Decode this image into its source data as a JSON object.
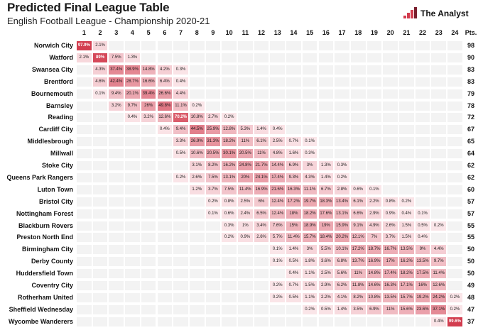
{
  "header": {
    "title": "Predicted Final League Table",
    "subtitle": "English Football League - Championship 2020-21",
    "brand": "The Analyst"
  },
  "colors": {
    "accent": "#d23c4e",
    "low": "#fbe9ec",
    "blank": "#f3f3f3"
  },
  "chart_data": {
    "type": "heatmap",
    "title": "Predicted Final League Table",
    "subtitle": "English Football League - Championship 2020-21",
    "x_categories": [
      "1",
      "2",
      "3",
      "4",
      "5",
      "6",
      "7",
      "8",
      "9",
      "10",
      "11",
      "12",
      "13",
      "14",
      "15",
      "16",
      "17",
      "18",
      "19",
      "20",
      "21",
      "22",
      "23",
      "24"
    ],
    "points_header": "Pts.",
    "rows": [
      {
        "team": "Norwich City",
        "pts": "98",
        "probs": [
          [
            "1",
            "97.9%"
          ],
          [
            "2",
            "2.1%"
          ]
        ]
      },
      {
        "team": "Watford",
        "pts": "90",
        "probs": [
          [
            "1",
            "2.1%"
          ],
          [
            "2",
            "89%"
          ],
          [
            "3",
            "7.5%"
          ],
          [
            "4",
            "1.3%"
          ]
        ]
      },
      {
        "team": "Swansea City",
        "pts": "83",
        "probs": [
          [
            "2",
            "4.3%"
          ],
          [
            "3",
            "37.4%"
          ],
          [
            "4",
            "38.9%"
          ],
          [
            "5",
            "14.8%"
          ],
          [
            "6",
            "4.2%"
          ],
          [
            "7",
            "0.3%"
          ]
        ]
      },
      {
        "team": "Brentford",
        "pts": "83",
        "probs": [
          [
            "2",
            "4.6%"
          ],
          [
            "3",
            "42.4%"
          ],
          [
            "4",
            "28.7%"
          ],
          [
            "5",
            "16.6%"
          ],
          [
            "6",
            "6.4%"
          ],
          [
            "7",
            "0.4%"
          ]
        ]
      },
      {
        "team": "Bournemouth",
        "pts": "79",
        "probs": [
          [
            "2",
            "0.1%"
          ],
          [
            "3",
            "9.4%"
          ],
          [
            "4",
            "20.1%"
          ],
          [
            "5",
            "39.4%"
          ],
          [
            "6",
            "26.6%"
          ],
          [
            "7",
            "4.4%"
          ]
        ]
      },
      {
        "team": "Barnsley",
        "pts": "78",
        "probs": [
          [
            "3",
            "3.2%"
          ],
          [
            "4",
            "9.7%"
          ],
          [
            "5",
            "26%"
          ],
          [
            "6",
            "49.8%"
          ],
          [
            "7",
            "11.1%"
          ],
          [
            "8",
            "0.2%"
          ]
        ]
      },
      {
        "team": "Reading",
        "pts": "72",
        "probs": [
          [
            "4",
            "0.4%"
          ],
          [
            "5",
            "3.2%"
          ],
          [
            "6",
            "12.6%"
          ],
          [
            "7",
            "70.2%"
          ],
          [
            "8",
            "10.8%"
          ],
          [
            "9",
            "2.7%"
          ],
          [
            "10",
            "0.2%"
          ]
        ]
      },
      {
        "team": "Cardiff City",
        "pts": "67",
        "probs": [
          [
            "6",
            "0.4%"
          ],
          [
            "7",
            "9.4%"
          ],
          [
            "8",
            "44.5%"
          ],
          [
            "9",
            "25.9%"
          ],
          [
            "10",
            "12.8%"
          ],
          [
            "11",
            "5.3%"
          ],
          [
            "12",
            "1.4%"
          ],
          [
            "13",
            "0.4%"
          ]
        ]
      },
      {
        "team": "Middlesbrough",
        "pts": "65",
        "probs": [
          [
            "7",
            "3.3%"
          ],
          [
            "8",
            "26.9%"
          ],
          [
            "9",
            "31.3%"
          ],
          [
            "10",
            "18.2%"
          ],
          [
            "11",
            "11%"
          ],
          [
            "12",
            "6.1%"
          ],
          [
            "13",
            "2.5%"
          ],
          [
            "14",
            "0.7%"
          ],
          [
            "15",
            "0.1%"
          ]
        ]
      },
      {
        "team": "Millwall",
        "pts": "64",
        "probs": [
          [
            "7",
            "0.5%"
          ],
          [
            "8",
            "10.6%"
          ],
          [
            "9",
            "20.5%"
          ],
          [
            "10",
            "30.1%"
          ],
          [
            "11",
            "20.5%"
          ],
          [
            "12",
            "11%"
          ],
          [
            "13",
            "4.8%"
          ],
          [
            "14",
            "1.6%"
          ],
          [
            "15",
            "0.3%"
          ]
        ]
      },
      {
        "team": "Stoke City",
        "pts": "62",
        "probs": [
          [
            "8",
            "3.1%"
          ],
          [
            "9",
            "8.2%"
          ],
          [
            "10",
            "16.2%"
          ],
          [
            "11",
            "24.8%"
          ],
          [
            "12",
            "21.7%"
          ],
          [
            "13",
            "14.4%"
          ],
          [
            "14",
            "6.9%"
          ],
          [
            "15",
            "3%"
          ],
          [
            "16",
            "1.3%"
          ],
          [
            "17",
            "0.3%"
          ]
        ]
      },
      {
        "team": "Queens Park Rangers",
        "pts": "62",
        "probs": [
          [
            "7",
            "0.2%"
          ],
          [
            "8",
            "2.6%"
          ],
          [
            "9",
            "7.5%"
          ],
          [
            "10",
            "13.1%"
          ],
          [
            "11",
            "20%"
          ],
          [
            "12",
            "24.1%"
          ],
          [
            "13",
            "17.4%"
          ],
          [
            "14",
            "9.3%"
          ],
          [
            "15",
            "4.3%"
          ],
          [
            "16",
            "1.4%"
          ],
          [
            "17",
            "0.2%"
          ]
        ]
      },
      {
        "team": "Luton Town",
        "pts": "60",
        "probs": [
          [
            "8",
            "1.2%"
          ],
          [
            "9",
            "3.7%"
          ],
          [
            "10",
            "7.5%"
          ],
          [
            "11",
            "11.4%"
          ],
          [
            "12",
            "16.9%"
          ],
          [
            "13",
            "21.6%"
          ],
          [
            "14",
            "16.3%"
          ],
          [
            "15",
            "11.1%"
          ],
          [
            "16",
            "6.7%"
          ],
          [
            "17",
            "2.8%"
          ],
          [
            "18",
            "0.6%"
          ],
          [
            "19",
            "0.1%"
          ]
        ]
      },
      {
        "team": "Bristol City",
        "pts": "57",
        "probs": [
          [
            "9",
            "0.2%"
          ],
          [
            "10",
            "0.8%"
          ],
          [
            "11",
            "2.5%"
          ],
          [
            "12",
            "6%"
          ],
          [
            "13",
            "12.4%"
          ],
          [
            "14",
            "17.2%"
          ],
          [
            "15",
            "19.7%"
          ],
          [
            "16",
            "18.3%"
          ],
          [
            "17",
            "13.4%"
          ],
          [
            "18",
            "6.1%"
          ],
          [
            "19",
            "2.2%"
          ],
          [
            "20",
            "0.8%"
          ],
          [
            "21",
            "0.2%"
          ]
        ]
      },
      {
        "team": "Nottingham Forest",
        "pts": "57",
        "probs": [
          [
            "9",
            "0.1%"
          ],
          [
            "10",
            "0.6%"
          ],
          [
            "11",
            "2.4%"
          ],
          [
            "12",
            "6.5%"
          ],
          [
            "13",
            "12.4%"
          ],
          [
            "14",
            "18%"
          ],
          [
            "15",
            "18.2%"
          ],
          [
            "16",
            "17.6%"
          ],
          [
            "17",
            "13.1%"
          ],
          [
            "18",
            "6.6%"
          ],
          [
            "19",
            "2.9%"
          ],
          [
            "20",
            "0.9%"
          ],
          [
            "21",
            "0.4%"
          ],
          [
            "22",
            "0.1%"
          ]
        ]
      },
      {
        "team": "Blackburn Rovers",
        "pts": "55",
        "probs": [
          [
            "10",
            "0.3%"
          ],
          [
            "11",
            "1%"
          ],
          [
            "12",
            "3.4%"
          ],
          [
            "13",
            "7.6%"
          ],
          [
            "14",
            "15%"
          ],
          [
            "15",
            "18.9%"
          ],
          [
            "16",
            "19%"
          ],
          [
            "17",
            "15.9%"
          ],
          [
            "18",
            "9.1%"
          ],
          [
            "19",
            "4.9%"
          ],
          [
            "20",
            "2.6%"
          ],
          [
            "21",
            "1.5%"
          ],
          [
            "22",
            "0.5%"
          ],
          [
            "23",
            "0.2%"
          ]
        ]
      },
      {
        "team": "Preston North End",
        "pts": "55",
        "probs": [
          [
            "10",
            "0.2%"
          ],
          [
            "11",
            "0.9%"
          ],
          [
            "12",
            "2.6%"
          ],
          [
            "13",
            "5.7%"
          ],
          [
            "14",
            "11.4%"
          ],
          [
            "15",
            "15.7%"
          ],
          [
            "16",
            "18.4%"
          ],
          [
            "17",
            "20.2%"
          ],
          [
            "18",
            "12.1%"
          ],
          [
            "19",
            "7%"
          ],
          [
            "20",
            "3.7%"
          ],
          [
            "21",
            "1.5%"
          ],
          [
            "22",
            "0.4%"
          ]
        ]
      },
      {
        "team": "Birmingham City",
        "pts": "50",
        "probs": [
          [
            "13",
            "0.1%"
          ],
          [
            "14",
            "1.4%"
          ],
          [
            "15",
            "3%"
          ],
          [
            "16",
            "5.5%"
          ],
          [
            "17",
            "10.1%"
          ],
          [
            "18",
            "17.2%"
          ],
          [
            "19",
            "18.7%"
          ],
          [
            "20",
            "16.7%"
          ],
          [
            "21",
            "13.5%"
          ],
          [
            "22",
            "9%"
          ],
          [
            "23",
            "4.4%"
          ]
        ]
      },
      {
        "team": "Derby County",
        "pts": "50",
        "probs": [
          [
            "13",
            "0.1%"
          ],
          [
            "14",
            "0.5%"
          ],
          [
            "15",
            "1.8%"
          ],
          [
            "16",
            "3.6%"
          ],
          [
            "17",
            "6.8%"
          ],
          [
            "18",
            "13.7%"
          ],
          [
            "19",
            "16.9%"
          ],
          [
            "20",
            "17%"
          ],
          [
            "21",
            "16.2%"
          ],
          [
            "22",
            "13.5%"
          ],
          [
            "23",
            "9.7%"
          ]
        ]
      },
      {
        "team": "Huddersfield Town",
        "pts": "50",
        "probs": [
          [
            "14",
            "0.4%"
          ],
          [
            "15",
            "1.1%"
          ],
          [
            "16",
            "2.5%"
          ],
          [
            "17",
            "5.6%"
          ],
          [
            "18",
            "11%"
          ],
          [
            "19",
            "14.8%"
          ],
          [
            "20",
            "17.4%"
          ],
          [
            "21",
            "18.2%"
          ],
          [
            "22",
            "17.5%"
          ],
          [
            "23",
            "11.4%"
          ]
        ]
      },
      {
        "team": "Coventry City",
        "pts": "49",
        "probs": [
          [
            "13",
            "0.2%"
          ],
          [
            "14",
            "0.7%"
          ],
          [
            "15",
            "1.5%"
          ],
          [
            "16",
            "2.9%"
          ],
          [
            "17",
            "6.2%"
          ],
          [
            "18",
            "11.8%"
          ],
          [
            "19",
            "14.6%"
          ],
          [
            "20",
            "16.3%"
          ],
          [
            "21",
            "17.1%"
          ],
          [
            "22",
            "16%"
          ],
          [
            "23",
            "12.6%"
          ]
        ]
      },
      {
        "team": "Rotherham United",
        "pts": "48",
        "probs": [
          [
            "13",
            "0.2%"
          ],
          [
            "14",
            "0.5%"
          ],
          [
            "15",
            "1.1%"
          ],
          [
            "16",
            "2.2%"
          ],
          [
            "17",
            "4.1%"
          ],
          [
            "18",
            "8.2%"
          ],
          [
            "19",
            "10.8%"
          ],
          [
            "20",
            "13.5%"
          ],
          [
            "21",
            "15.7%"
          ],
          [
            "22",
            "19.2%"
          ],
          [
            "23",
            "24.2%"
          ],
          [
            "24",
            "0.2%"
          ]
        ]
      },
      {
        "team": "Sheffield Wednesday",
        "pts": "47",
        "probs": [
          [
            "15",
            "0.2%"
          ],
          [
            "16",
            "0.5%"
          ],
          [
            "17",
            "1.4%"
          ],
          [
            "18",
            "3.5%"
          ],
          [
            "19",
            "6.9%"
          ],
          [
            "20",
            "11%"
          ],
          [
            "21",
            "15.6%"
          ],
          [
            "22",
            "23.6%"
          ],
          [
            "23",
            "37.1%"
          ],
          [
            "24",
            "0.2%"
          ]
        ]
      },
      {
        "team": "Wycombe Wanderers",
        "pts": "37",
        "probs": [
          [
            "23",
            "0.4%"
          ],
          [
            "24",
            "99.6%"
          ]
        ]
      }
    ]
  }
}
